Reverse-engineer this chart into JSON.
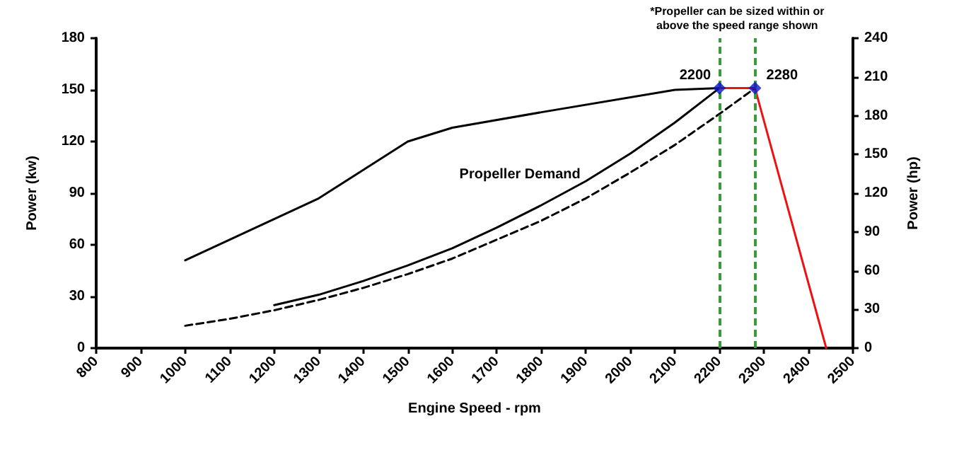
{
  "chart_data": {
    "type": "line",
    "xlabel": "Engine Speed - rpm",
    "ylabel": "Power (kw)",
    "y2label": "Power (hp)",
    "xlim": [
      800,
      2500
    ],
    "xticks": [
      800,
      900,
      1000,
      1100,
      1200,
      1300,
      1400,
      1500,
      1600,
      1700,
      1800,
      1900,
      2000,
      2100,
      2200,
      2300,
      2400,
      2500
    ],
    "ylim": [
      0,
      180
    ],
    "yticks": [
      0,
      30,
      60,
      90,
      120,
      150,
      180
    ],
    "y2lim": [
      0,
      240
    ],
    "y2ticks": [
      0,
      30,
      60,
      90,
      120,
      150,
      180,
      210,
      240
    ],
    "grid": false,
    "marker": "none",
    "series": [
      {
        "color": "#000000",
        "x": [
          1000,
          1300,
          1500,
          1600,
          1800,
          2100,
          2200
        ],
        "values": [
          51,
          87,
          120,
          128,
          137,
          150,
          151
        ]
      },
      {
        "color": "#000000",
        "x": [
          1200,
          1300,
          1400,
          1500,
          1600,
          1700,
          1800,
          1900,
          2000,
          2100,
          2200
        ],
        "values": [
          25,
          31,
          39,
          48,
          58,
          70,
          83,
          97,
          113,
          131,
          151
        ]
      },
      {
        "color": "#000000",
        "line_style": "dashed",
        "x": [
          1000,
          1100,
          1200,
          1300,
          1400,
          1500,
          1600,
          1700,
          1800,
          1900,
          2000,
          2100,
          2200,
          2280
        ],
        "values": [
          13,
          17,
          22,
          28,
          35,
          43,
          52,
          63,
          74,
          87,
          102,
          118,
          136,
          151
        ]
      },
      {
        "color": "#ee1111",
        "x": [
          2200,
          2280,
          2440
        ],
        "values": [
          151,
          151,
          0
        ]
      },
      {
        "type": "scatter",
        "marker": "diamond",
        "color": "#0a14c8",
        "x": [
          2200,
          2280
        ],
        "values": [
          151,
          151
        ]
      }
    ],
    "ref_lines": [
      {
        "axis": "x",
        "value": 2200,
        "color": "#3c9a3c",
        "line_style": "dashed"
      },
      {
        "axis": "x",
        "value": 2280,
        "color": "#3c9a3c",
        "line_style": "dashed"
      }
    ],
    "annotations": [
      "*Propeller can be sized within or\nabove the speed range shown",
      {
        "text": "2200",
        "x": 2200,
        "y": 151
      },
      {
        "text": "2280",
        "x": 2280,
        "y": 151
      },
      "Propeller Demand"
    ]
  }
}
